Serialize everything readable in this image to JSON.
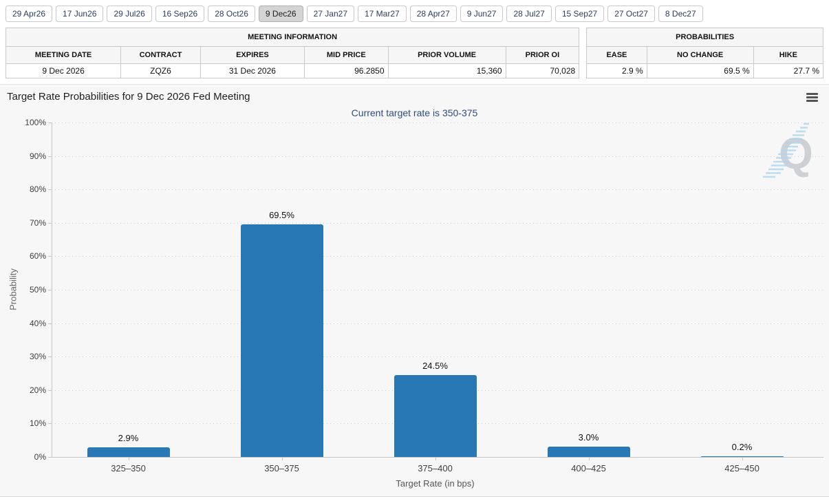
{
  "tabs": {
    "items": [
      {
        "label": "29 Apr26",
        "selected": false
      },
      {
        "label": "17 Jun26",
        "selected": false
      },
      {
        "label": "29 Jul26",
        "selected": false
      },
      {
        "label": "16 Sep26",
        "selected": false
      },
      {
        "label": "28 Oct26",
        "selected": false
      },
      {
        "label": "9 Dec26",
        "selected": true
      },
      {
        "label": "27 Jan27",
        "selected": false
      },
      {
        "label": "17 Mar27",
        "selected": false
      },
      {
        "label": "28 Apr27",
        "selected": false
      },
      {
        "label": "9 Jun27",
        "selected": false
      },
      {
        "label": "28 Jul27",
        "selected": false
      },
      {
        "label": "15 Sep27",
        "selected": false
      },
      {
        "label": "27 Oct27",
        "selected": false
      },
      {
        "label": "8 Dec27",
        "selected": false
      }
    ]
  },
  "meeting_information": {
    "title": "MEETING INFORMATION",
    "columns": [
      "MEETING DATE",
      "CONTRACT",
      "EXPIRES",
      "MID PRICE",
      "PRIOR VOLUME",
      "PRIOR OI"
    ],
    "row": {
      "meeting_date": "9 Dec 2026",
      "contract": "ZQZ6",
      "expires": "31 Dec 2026",
      "mid_price": "96.2850",
      "prior_volume": "15,360",
      "prior_oi": "70,028"
    }
  },
  "probabilities": {
    "title": "PROBABILITIES",
    "columns": [
      "EASE",
      "NO CHANGE",
      "HIKE"
    ],
    "row": {
      "ease": "2.9 %",
      "no_change": "69.5 %",
      "hike": "27.7 %"
    }
  },
  "icons": {
    "menu": "hamburger-menu-icon",
    "watermark": "quikstrike-q-watermark"
  },
  "colors": {
    "bar": "#2778b5",
    "subtitle": "#2f4d7c",
    "selected_tab_bg": "#d4d4d4",
    "chart_bg": "#f7f7f7"
  },
  "chart_data": {
    "type": "bar",
    "title": "Target Rate Probabilities for 9 Dec 2026 Fed Meeting",
    "subtitle": "Current target rate is 350-375",
    "categories": [
      "325–350",
      "350–375",
      "375–400",
      "400–425",
      "425–450"
    ],
    "values": [
      2.9,
      69.5,
      24.5,
      3.0,
      0.2
    ],
    "data_labels": [
      "2.9%",
      "69.5%",
      "24.5%",
      "3.0%",
      "0.2%"
    ],
    "xlabel": "Target Rate (in bps)",
    "ylabel": "Probability",
    "ylim": [
      0,
      100
    ],
    "ytick_step": 10,
    "ytick_suffix": "%",
    "bar_color": "#2778b5",
    "grid": true,
    "legend": "none"
  }
}
